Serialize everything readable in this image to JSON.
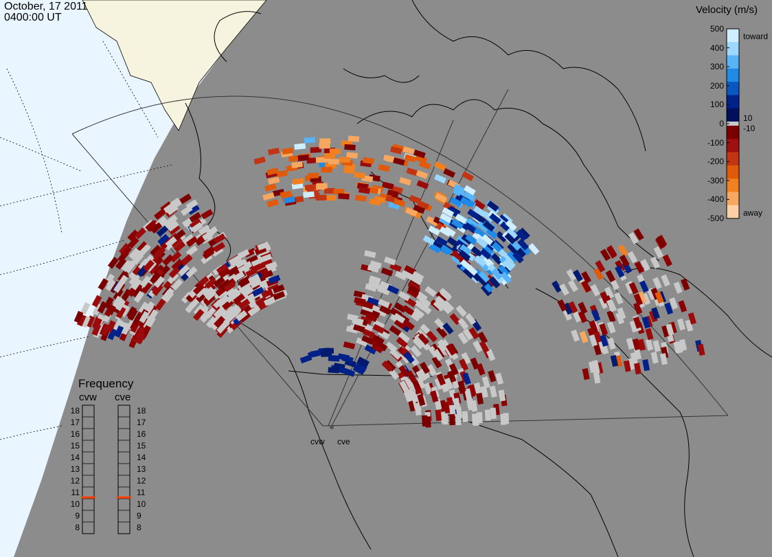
{
  "header": {
    "date": "October, 17 2011",
    "time": "0400:00 UT"
  },
  "colorbar": {
    "title": "Velocity (m/s)",
    "ticks": [
      "500",
      "400",
      "300",
      "200",
      "100",
      "0",
      "-100",
      "-200",
      "-300",
      "-400",
      "-500"
    ],
    "threshold_pos": "10",
    "threshold_neg": "-10",
    "end_top": "toward",
    "end_bottom": "away",
    "colors": [
      "#cfeeff",
      "#9fd8ff",
      "#56b4f7",
      "#1f8be6",
      "#0b57c2",
      "#00208a",
      "#00105a",
      "#7a0000",
      "#a01010",
      "#c23512",
      "#e05a0a",
      "#f08020",
      "#f7a860",
      "#fdd0a8"
    ]
  },
  "frequency": {
    "title": "Frequency",
    "radars": [
      {
        "label": "cvw",
        "value_mhz": 10.6
      },
      {
        "label": "cve",
        "value_mhz": 10.6
      }
    ],
    "scale": [
      "18",
      "17",
      "16",
      "15",
      "14",
      "13",
      "12",
      "11",
      "10",
      "9",
      "8"
    ],
    "marker_color": "#ff4000"
  },
  "sites": [
    "cvw",
    "cve"
  ],
  "colors": {
    "background": "#8c8c8c",
    "ocean": "#eaf6ff",
    "land_day": "#f6f3df",
    "scatter_grey": "#c8c8c8"
  }
}
